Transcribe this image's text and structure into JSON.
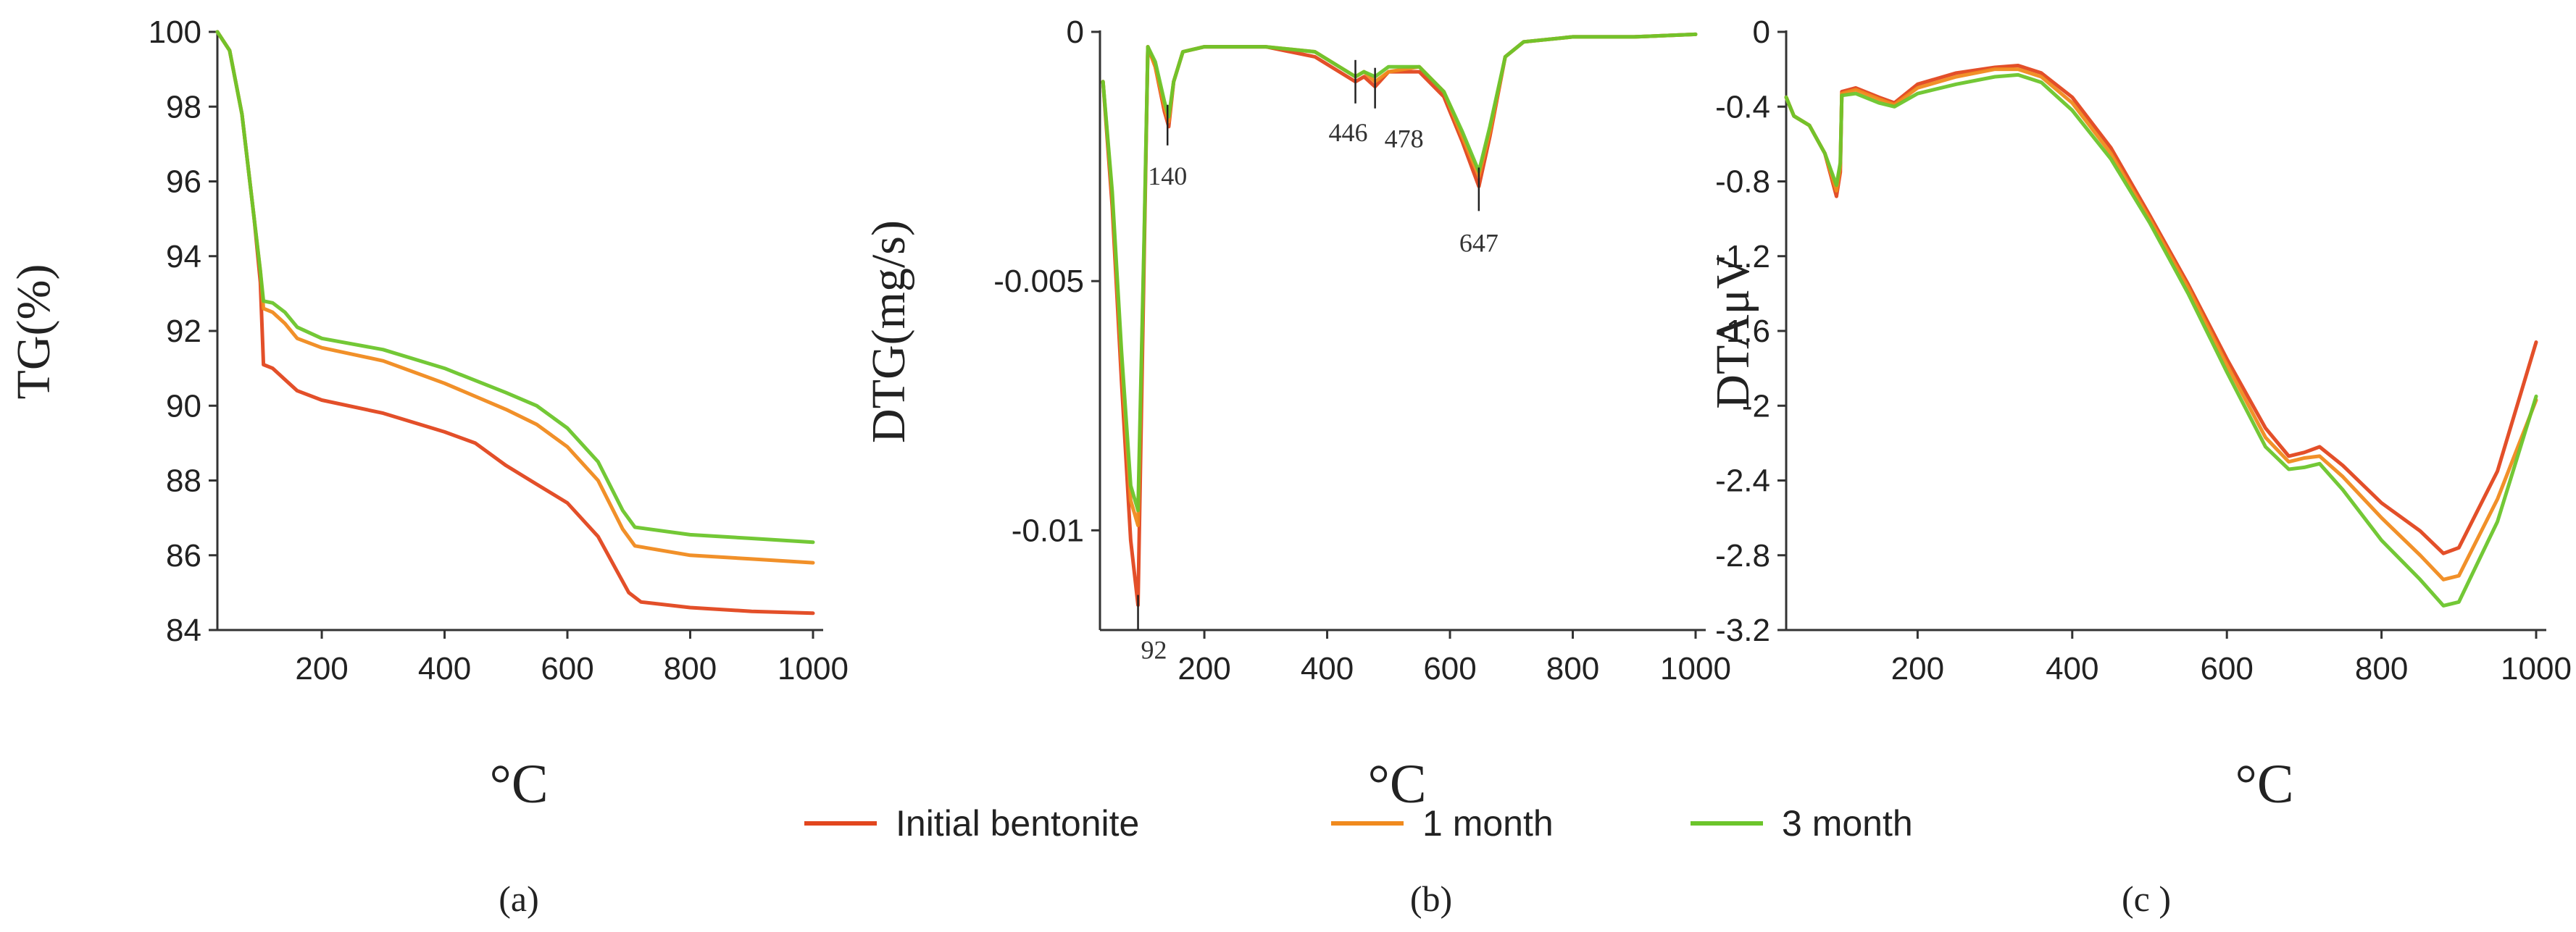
{
  "legend": [
    {
      "label": "Initial bentonite",
      "color": "#E2461E"
    },
    {
      "label": "1 month",
      "color": "#F08A1E"
    },
    {
      "label": "3 month",
      "color": "#6CC52B"
    }
  ],
  "chart_data": [
    {
      "id": "a",
      "type": "line",
      "panel_label": "(a)",
      "ylabel": "TG(%)",
      "xlabel": "°C",
      "xlim": [
        30,
        1000
      ],
      "ylim": [
        84,
        100
      ],
      "xticks": [
        200,
        400,
        600,
        800,
        1000
      ],
      "yticks": [
        84,
        86,
        88,
        90,
        92,
        94,
        96,
        98,
        100
      ],
      "series": [
        {
          "name": "Initial bentonite",
          "color": "#E2461E",
          "points": [
            [
              30,
              100
            ],
            [
              50,
              99.5
            ],
            [
              70,
              97.8
            ],
            [
              90,
              95
            ],
            [
              100,
              93.3
            ],
            [
              105,
              91.1
            ],
            [
              120,
              91.0
            ],
            [
              140,
              90.7
            ],
            [
              160,
              90.4
            ],
            [
              200,
              90.15
            ],
            [
              300,
              89.8
            ],
            [
              400,
              89.3
            ],
            [
              450,
              89.0
            ],
            [
              500,
              88.4
            ],
            [
              550,
              87.9
            ],
            [
              600,
              87.4
            ],
            [
              650,
              86.5
            ],
            [
              680,
              85.6
            ],
            [
              700,
              85.0
            ],
            [
              720,
              84.75
            ],
            [
              800,
              84.6
            ],
            [
              900,
              84.5
            ],
            [
              1000,
              84.45
            ]
          ]
        },
        {
          "name": "1 month",
          "color": "#F08A1E",
          "points": [
            [
              30,
              100
            ],
            [
              50,
              99.5
            ],
            [
              70,
              97.8
            ],
            [
              90,
              95
            ],
            [
              100,
              93.6
            ],
            [
              105,
              92.6
            ],
            [
              120,
              92.5
            ],
            [
              140,
              92.2
            ],
            [
              160,
              91.8
            ],
            [
              200,
              91.55
            ],
            [
              300,
              91.2
            ],
            [
              400,
              90.6
            ],
            [
              500,
              89.9
            ],
            [
              550,
              89.5
            ],
            [
              600,
              88.9
            ],
            [
              650,
              88.0
            ],
            [
              690,
              86.7
            ],
            [
              710,
              86.25
            ],
            [
              800,
              86.0
            ],
            [
              900,
              85.9
            ],
            [
              1000,
              85.8
            ]
          ]
        },
        {
          "name": "3 month",
          "color": "#6CC52B",
          "points": [
            [
              30,
              100
            ],
            [
              50,
              99.5
            ],
            [
              70,
              97.8
            ],
            [
              90,
              95
            ],
            [
              100,
              93.6
            ],
            [
              105,
              92.8
            ],
            [
              120,
              92.75
            ],
            [
              140,
              92.5
            ],
            [
              160,
              92.1
            ],
            [
              200,
              91.8
            ],
            [
              300,
              91.5
            ],
            [
              400,
              91.0
            ],
            [
              500,
              90.35
            ],
            [
              550,
              90.0
            ],
            [
              600,
              89.4
            ],
            [
              650,
              88.5
            ],
            [
              690,
              87.2
            ],
            [
              710,
              86.75
            ],
            [
              800,
              86.55
            ],
            [
              900,
              86.45
            ],
            [
              1000,
              86.35
            ]
          ]
        }
      ]
    },
    {
      "id": "b",
      "type": "line",
      "panel_label": "(b)",
      "ylabel": "DTG(mg/s)",
      "xlabel": "°C",
      "xlim": [
        30,
        1000
      ],
      "ylim": [
        -0.012,
        0
      ],
      "xticks": [
        200,
        400,
        600,
        800,
        1000
      ],
      "yticks": [
        0,
        -0.005,
        -0.01
      ],
      "ytick_labels": [
        "0",
        "-0.005",
        "-0.01"
      ],
      "annotations": [
        {
          "text": "92",
          "x": 92,
          "y": -0.0115
        },
        {
          "text": "140",
          "x": 140,
          "y": -0.0019
        },
        {
          "text": "446",
          "x": 446,
          "y": -0.001
        },
        {
          "text": "478",
          "x": 478,
          "y": -0.0011
        },
        {
          "text": "647",
          "x": 647,
          "y": -0.0031
        }
      ],
      "series": [
        {
          "name": "Initial bentonite",
          "color": "#E2461E",
          "points": [
            [
              35,
              -0.001
            ],
            [
              50,
              -0.0035
            ],
            [
              65,
              -0.007
            ],
            [
              80,
              -0.0102
            ],
            [
              92,
              -0.0115
            ],
            [
              102,
              -0.0045
            ],
            [
              108,
              -0.0003
            ],
            [
              120,
              -0.0007
            ],
            [
              135,
              -0.0016
            ],
            [
              142,
              -0.0019
            ],
            [
              150,
              -0.001
            ],
            [
              165,
              -0.0004
            ],
            [
              200,
              -0.0003
            ],
            [
              300,
              -0.0003
            ],
            [
              380,
              -0.0005
            ],
            [
              446,
              -0.001
            ],
            [
              460,
              -0.0009
            ],
            [
              478,
              -0.0011
            ],
            [
              500,
              -0.0008
            ],
            [
              550,
              -0.0008
            ],
            [
              590,
              -0.0013
            ],
            [
              620,
              -0.0022
            ],
            [
              647,
              -0.0031
            ],
            [
              665,
              -0.0021
            ],
            [
              690,
              -0.0005
            ],
            [
              720,
              -0.0002
            ],
            [
              800,
              -0.0001
            ],
            [
              900,
              -0.0001
            ],
            [
              1000,
              -5e-05
            ]
          ]
        },
        {
          "name": "1 month",
          "color": "#F08A1E",
          "points": [
            [
              35,
              -0.001
            ],
            [
              50,
              -0.0033
            ],
            [
              65,
              -0.0066
            ],
            [
              80,
              -0.0094
            ],
            [
              92,
              -0.0099
            ],
            [
              102,
              -0.0042
            ],
            [
              108,
              -0.0003
            ],
            [
              120,
              -0.0007
            ],
            [
              135,
              -0.0015
            ],
            [
              142,
              -0.0018
            ],
            [
              150,
              -0.001
            ],
            [
              165,
              -0.0004
            ],
            [
              200,
              -0.0003
            ],
            [
              300,
              -0.0003
            ],
            [
              380,
              -0.0004
            ],
            [
              446,
              -0.0009
            ],
            [
              460,
              -0.0008
            ],
            [
              478,
              -0.001
            ],
            [
              500,
              -0.0008
            ],
            [
              550,
              -0.0007
            ],
            [
              590,
              -0.0012
            ],
            [
              620,
              -0.0021
            ],
            [
              647,
              -0.0029
            ],
            [
              665,
              -0.002
            ],
            [
              690,
              -0.0005
            ],
            [
              720,
              -0.0002
            ],
            [
              800,
              -0.0001
            ],
            [
              900,
              -0.0001
            ],
            [
              1000,
              -5e-05
            ]
          ]
        },
        {
          "name": "3 month",
          "color": "#6CC52B",
          "points": [
            [
              35,
              -0.001
            ],
            [
              50,
              -0.0032
            ],
            [
              65,
              -0.0064
            ],
            [
              80,
              -0.0091
            ],
            [
              92,
              -0.0096
            ],
            [
              102,
              -0.0041
            ],
            [
              108,
              -0.0003
            ],
            [
              120,
              -0.0006
            ],
            [
              135,
              -0.0014
            ],
            [
              142,
              -0.0017
            ],
            [
              150,
              -0.001
            ],
            [
              165,
              -0.0004
            ],
            [
              200,
              -0.0003
            ],
            [
              300,
              -0.0003
            ],
            [
              380,
              -0.0004
            ],
            [
              446,
              -0.0009
            ],
            [
              460,
              -0.0008
            ],
            [
              478,
              -0.0009
            ],
            [
              500,
              -0.0007
            ],
            [
              550,
              -0.0007
            ],
            [
              590,
              -0.0012
            ],
            [
              620,
              -0.002
            ],
            [
              647,
              -0.0028
            ],
            [
              665,
              -0.0019
            ],
            [
              690,
              -0.0005
            ],
            [
              720,
              -0.0002
            ],
            [
              800,
              -0.0001
            ],
            [
              900,
              -0.0001
            ],
            [
              1000,
              -5e-05
            ]
          ]
        }
      ]
    },
    {
      "id": "c",
      "type": "line",
      "panel_label": "(c )",
      "ylabel": "DTAμV",
      "xlabel": "°C",
      "xlim": [
        30,
        1000
      ],
      "ylim": [
        -3.2,
        0
      ],
      "xticks": [
        200,
        400,
        600,
        800,
        1000
      ],
      "yticks": [
        0,
        -0.4,
        -0.8,
        -1.2,
        -1.6,
        -2,
        -2.4,
        -2.8,
        -3.2
      ],
      "series": [
        {
          "name": "Initial bentonite",
          "color": "#E2461E",
          "points": [
            [
              30,
              -0.35
            ],
            [
              40,
              -0.45
            ],
            [
              60,
              -0.5
            ],
            [
              80,
              -0.65
            ],
            [
              95,
              -0.88
            ],
            [
              100,
              -0.75
            ],
            [
              102,
              -0.32
            ],
            [
              120,
              -0.3
            ],
            [
              150,
              -0.35
            ],
            [
              170,
              -0.38
            ],
            [
              200,
              -0.28
            ],
            [
              250,
              -0.22
            ],
            [
              300,
              -0.19
            ],
            [
              330,
              -0.18
            ],
            [
              360,
              -0.22
            ],
            [
              400,
              -0.35
            ],
            [
              450,
              -0.62
            ],
            [
              500,
              -0.98
            ],
            [
              550,
              -1.35
            ],
            [
              600,
              -1.75
            ],
            [
              650,
              -2.12
            ],
            [
              680,
              -2.27
            ],
            [
              700,
              -2.25
            ],
            [
              720,
              -2.22
            ],
            [
              750,
              -2.32
            ],
            [
              800,
              -2.52
            ],
            [
              850,
              -2.67
            ],
            [
              880,
              -2.79
            ],
            [
              900,
              -2.76
            ],
            [
              950,
              -2.35
            ],
            [
              1000,
              -1.66
            ]
          ]
        },
        {
          "name": "1 month",
          "color": "#F08A1E",
          "points": [
            [
              30,
              -0.35
            ],
            [
              40,
              -0.45
            ],
            [
              60,
              -0.5
            ],
            [
              80,
              -0.65
            ],
            [
              95,
              -0.85
            ],
            [
              100,
              -0.72
            ],
            [
              102,
              -0.33
            ],
            [
              120,
              -0.31
            ],
            [
              150,
              -0.36
            ],
            [
              170,
              -0.39
            ],
            [
              200,
              -0.3
            ],
            [
              250,
              -0.24
            ],
            [
              300,
              -0.2
            ],
            [
              330,
              -0.2
            ],
            [
              360,
              -0.24
            ],
            [
              400,
              -0.38
            ],
            [
              450,
              -0.65
            ],
            [
              500,
              -1.0
            ],
            [
              550,
              -1.37
            ],
            [
              600,
              -1.78
            ],
            [
              650,
              -2.17
            ],
            [
              680,
              -2.3
            ],
            [
              700,
              -2.28
            ],
            [
              720,
              -2.27
            ],
            [
              750,
              -2.38
            ],
            [
              800,
              -2.6
            ],
            [
              850,
              -2.8
            ],
            [
              880,
              -2.93
            ],
            [
              900,
              -2.91
            ],
            [
              950,
              -2.5
            ],
            [
              1000,
              -1.97
            ]
          ]
        },
        {
          "name": "3 month",
          "color": "#6CC52B",
          "points": [
            [
              30,
              -0.35
            ],
            [
              40,
              -0.45
            ],
            [
              60,
              -0.5
            ],
            [
              80,
              -0.65
            ],
            [
              95,
              -0.82
            ],
            [
              100,
              -0.7
            ],
            [
              102,
              -0.34
            ],
            [
              120,
              -0.33
            ],
            [
              150,
              -0.38
            ],
            [
              170,
              -0.4
            ],
            [
              200,
              -0.33
            ],
            [
              250,
              -0.28
            ],
            [
              300,
              -0.24
            ],
            [
              330,
              -0.23
            ],
            [
              360,
              -0.27
            ],
            [
              400,
              -0.42
            ],
            [
              450,
              -0.68
            ],
            [
              500,
              -1.02
            ],
            [
              550,
              -1.4
            ],
            [
              600,
              -1.82
            ],
            [
              650,
              -2.22
            ],
            [
              680,
              -2.34
            ],
            [
              700,
              -2.33
            ],
            [
              720,
              -2.31
            ],
            [
              750,
              -2.45
            ],
            [
              800,
              -2.72
            ],
            [
              850,
              -2.93
            ],
            [
              880,
              -3.07
            ],
            [
              900,
              -3.05
            ],
            [
              950,
              -2.62
            ],
            [
              1000,
              -1.95
            ]
          ]
        }
      ]
    }
  ]
}
